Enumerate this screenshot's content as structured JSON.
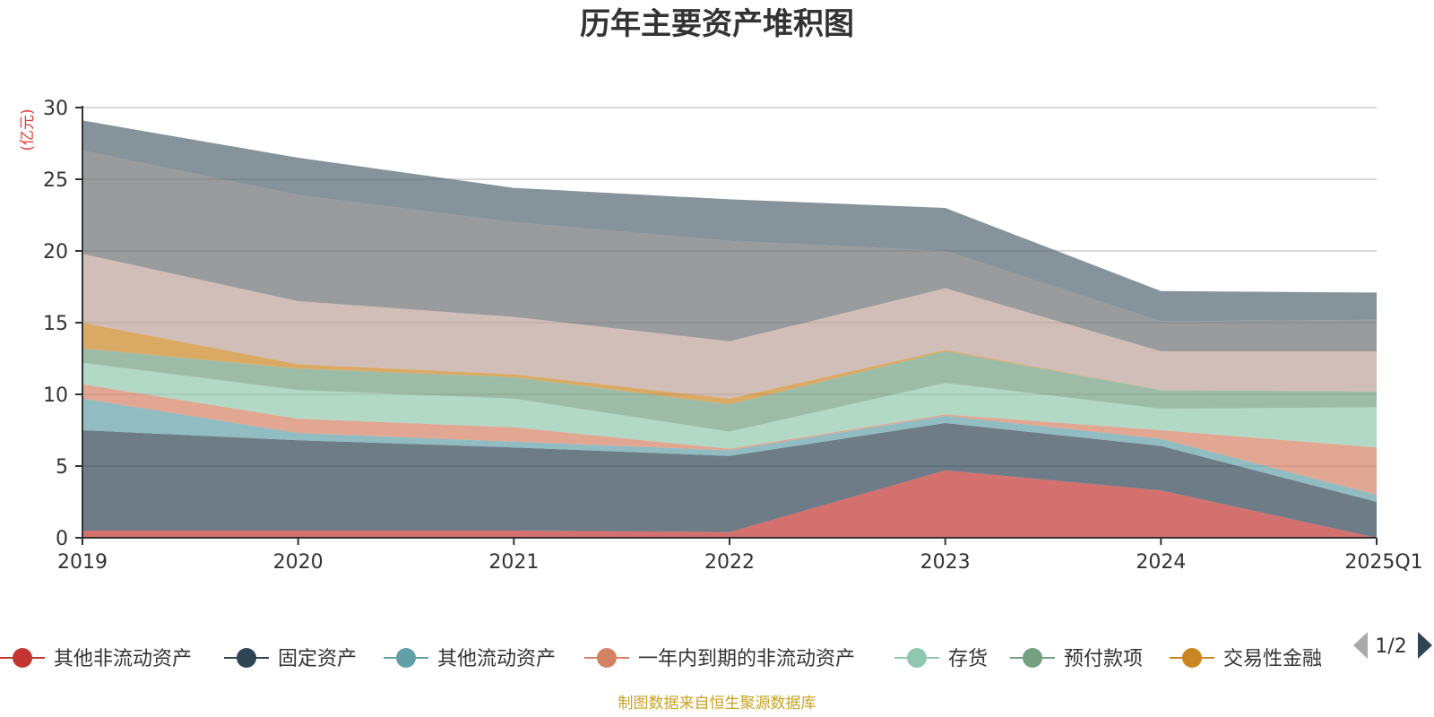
{
  "chart_data": {
    "type": "area",
    "stacked": true,
    "title": "历年主要资产堆积图",
    "unit_label": "(亿元)",
    "x": [
      "2019",
      "2020",
      "2021",
      "2022",
      "2023",
      "2024",
      "2025Q1"
    ],
    "ylim": [
      0,
      30
    ],
    "yticks": [
      "0",
      "5",
      "10",
      "15",
      "20",
      "25",
      "30"
    ],
    "grid": true,
    "series": [
      {
        "name": "其他非流动资产",
        "color": "#c23531",
        "values": [
          0.5,
          0.5,
          0.5,
          0.4,
          4.7,
          3.3,
          0
        ]
      },
      {
        "name": "固定资产",
        "color": "#2f4554",
        "values": [
          7.0,
          6.3,
          5.8,
          5.3,
          3.3,
          3.1,
          2.5
        ]
      },
      {
        "name": "其他流动资产",
        "color": "#61a0a8",
        "values": [
          2.2,
          0.5,
          0.4,
          0.4,
          0.5,
          0.5,
          0.5
        ]
      },
      {
        "name": "一年内到期的非流动资产",
        "color": "#d48265",
        "values": [
          1.0,
          1.0,
          1.0,
          0.1,
          0.1,
          0.6,
          3.3
        ]
      },
      {
        "name": "存货",
        "color": "#91c7ae",
        "values": [
          1.5,
          2.0,
          2.0,
          1.2,
          2.2,
          1.5,
          2.8
        ]
      },
      {
        "name": "预付款项",
        "color": "#749f83",
        "values": [
          1.0,
          1.5,
          1.5,
          1.9,
          2.2,
          1.3,
          1.1
        ]
      },
      {
        "name": "交易性金融",
        "color": "#ca8622",
        "values": [
          1.8,
          0.3,
          0.2,
          0.4,
          0.1,
          0,
          0
        ]
      },
      {
        "name": "",
        "color": "#bda29a",
        "values": [
          4.8,
          4.4,
          4.0,
          4.0,
          4.3,
          2.7,
          2.8
        ]
      },
      {
        "name": "",
        "color": "#6e7074",
        "values": [
          7.2,
          7.4,
          6.6,
          7.0,
          2.6,
          2.1,
          2.2
        ]
      },
      {
        "name": "",
        "color": "#546570",
        "values": [
          2.1,
          2.6,
          2.4,
          2.9,
          3.0,
          2.1,
          1.9
        ]
      }
    ]
  },
  "legend": {
    "page": "1/2",
    "prev_icon": "triangle-left-icon",
    "next_icon": "triangle-right-icon"
  },
  "source": "制图数据来自恒生聚源数据库"
}
